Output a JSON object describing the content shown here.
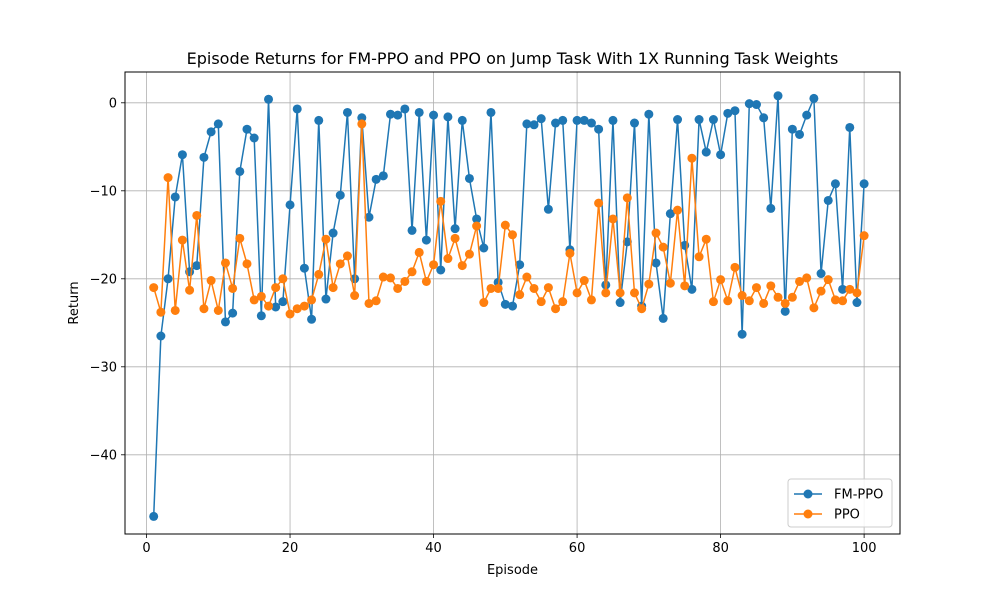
{
  "chart_data": {
    "type": "line",
    "title": "Episode Returns for FM-PPO and PPO on Jump Task With 1X Running Task Weights",
    "xlabel": "Episode",
    "ylabel": "Return",
    "xlim": [
      -3,
      105
    ],
    "ylim": [
      -49.0,
      3.5
    ],
    "xticks": [
      0,
      20,
      40,
      60,
      80,
      100
    ],
    "yticks": [
      -40,
      -30,
      -20,
      -10,
      0
    ],
    "grid": true,
    "legend_position": "lower-right",
    "x": [
      1,
      2,
      3,
      4,
      5,
      6,
      7,
      8,
      9,
      10,
      11,
      12,
      13,
      14,
      15,
      16,
      17,
      18,
      19,
      20,
      21,
      22,
      23,
      24,
      25,
      26,
      27,
      28,
      29,
      30,
      31,
      32,
      33,
      34,
      35,
      36,
      37,
      38,
      39,
      40,
      41,
      42,
      43,
      44,
      45,
      46,
      47,
      48,
      49,
      50,
      51,
      52,
      53,
      54,
      55,
      56,
      57,
      58,
      59,
      60,
      61,
      62,
      63,
      64,
      65,
      66,
      67,
      68,
      69,
      70,
      71,
      72,
      73,
      74,
      75,
      76,
      77,
      78,
      79,
      80,
      81,
      82,
      83,
      84,
      85,
      86,
      87,
      88,
      89,
      90,
      91,
      92,
      93,
      94,
      95,
      96,
      97,
      98,
      99,
      100
    ],
    "series": [
      {
        "name": "FM-PPO",
        "color": "#1f77b4",
        "values": [
          -47.0,
          -26.5,
          -20.0,
          -10.7,
          -5.9,
          -19.2,
          -18.5,
          -6.2,
          -3.3,
          -2.4,
          -24.9,
          -23.9,
          -7.8,
          -3.0,
          -4.0,
          -24.2,
          0.4,
          -23.2,
          -22.6,
          -11.6,
          -0.7,
          -18.8,
          -24.6,
          -2.0,
          -22.3,
          -14.8,
          -10.5,
          -1.1,
          -20.0,
          -1.7,
          -13.0,
          -8.7,
          -8.3,
          -1.3,
          -1.4,
          -0.7,
          -14.5,
          -1.1,
          -15.6,
          -1.4,
          -19.0,
          -1.6,
          -14.3,
          -2.0,
          -8.6,
          -13.2,
          -16.5,
          -1.1,
          -20.4,
          -22.9,
          -23.1,
          -18.4,
          -2.4,
          -2.5,
          -1.8,
          -12.1,
          -2.3,
          -2.0,
          -16.7,
          -2.0,
          -2.0,
          -2.3,
          -3.0,
          -20.7,
          -2.0,
          -22.7,
          -15.8,
          -2.3,
          -23.1,
          -1.3,
          -18.2,
          -24.5,
          -12.6,
          -1.9,
          -16.2,
          -21.2,
          -1.9,
          -5.6,
          -1.9,
          -5.9,
          -1.2,
          -0.9,
          -26.3,
          -0.1,
          -0.2,
          -1.7,
          -12.0,
          0.8,
          -23.7,
          -3.0,
          -3.6,
          -1.4,
          0.5,
          -19.4,
          -11.1,
          -9.2,
          -21.2,
          -2.8,
          -22.7,
          -9.2
        ]
      },
      {
        "name": "PPO",
        "color": "#ff7f0e",
        "values": [
          -21.0,
          -23.8,
          -8.5,
          -23.6,
          -15.6,
          -21.3,
          -12.8,
          -23.4,
          -20.2,
          -23.6,
          -18.2,
          -21.1,
          -15.4,
          -18.3,
          -22.4,
          -22.0,
          -23.1,
          -21.0,
          -20.0,
          -24.0,
          -23.4,
          -23.1,
          -22.4,
          -19.5,
          -15.5,
          -21.0,
          -18.3,
          -17.4,
          -21.9,
          -2.4,
          -22.8,
          -22.5,
          -19.8,
          -19.9,
          -21.1,
          -20.3,
          -19.2,
          -17.0,
          -20.3,
          -18.4,
          -11.2,
          -17.7,
          -15.4,
          -18.5,
          -17.2,
          -14.0,
          -22.7,
          -21.1,
          -21.1,
          -13.9,
          -15.0,
          -21.8,
          -19.8,
          -21.1,
          -22.6,
          -21.0,
          -23.4,
          -22.6,
          -17.1,
          -21.6,
          -20.2,
          -22.4,
          -11.4,
          -21.6,
          -13.2,
          -21.6,
          -10.8,
          -21.6,
          -23.4,
          -20.6,
          -14.8,
          -16.4,
          -20.5,
          -12.2,
          -20.8,
          -6.3,
          -17.5,
          -15.5,
          -22.6,
          -20.1,
          -22.5,
          -18.7,
          -21.9,
          -22.5,
          -21.0,
          -22.8,
          -20.8,
          -22.1,
          -22.8,
          -22.1,
          -20.3,
          -19.9,
          -23.3,
          -21.4,
          -20.1,
          -22.4,
          -22.5,
          -21.2,
          -21.6,
          -15.1
        ]
      }
    ]
  }
}
